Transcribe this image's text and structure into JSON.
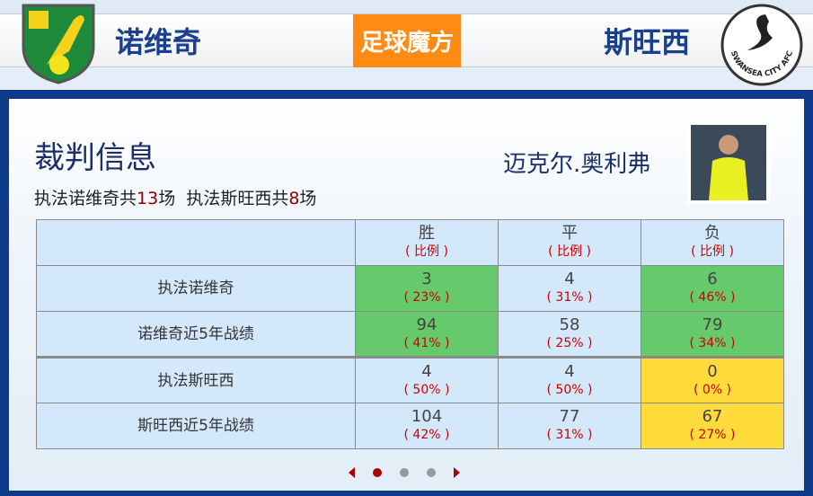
{
  "header": {
    "home_team": "诺维奇",
    "away_team": "斯旺西",
    "brand": "足球魔方",
    "home_crest": "norwich-crest",
    "away_crest": "swansea-crest",
    "away_crest_text": "SWANSEA CITY AFC"
  },
  "referee": {
    "title": "裁判信息",
    "name": "迈克尔.奥利弗",
    "stats_prefix1": "执法诺维奇共",
    "count1": "13",
    "unit1": "场",
    "stats_prefix2": "执法斯旺西共",
    "count2": "8",
    "unit2": "场"
  },
  "table": {
    "headers": [
      {
        "label": "胜",
        "sub": "( 比例 )"
      },
      {
        "label": "平",
        "sub": "( 比例 )"
      },
      {
        "label": "负",
        "sub": "( 比例 )"
      }
    ],
    "rows": [
      {
        "label": "执法诺维奇",
        "cells": [
          {
            "v": "3",
            "p": "( 23% )",
            "hl": "g"
          },
          {
            "v": "4",
            "p": "( 31% )",
            "hl": ""
          },
          {
            "v": "6",
            "p": "( 46% )",
            "hl": "g"
          }
        ]
      },
      {
        "label": "诺维奇近5年战绩",
        "cells": [
          {
            "v": "94",
            "p": "( 41% )",
            "hl": "g"
          },
          {
            "v": "58",
            "p": "( 25% )",
            "hl": ""
          },
          {
            "v": "79",
            "p": "( 34% )",
            "hl": "g"
          }
        ]
      },
      {
        "label": "执法斯旺西",
        "cells": [
          {
            "v": "4",
            "p": "( 50% )",
            "hl": ""
          },
          {
            "v": "4",
            "p": "( 50% )",
            "hl": ""
          },
          {
            "v": "0",
            "p": "( 0% )",
            "hl": "y"
          }
        ]
      },
      {
        "label": "斯旺西近5年战绩",
        "cells": [
          {
            "v": "104",
            "p": "( 42% )",
            "hl": ""
          },
          {
            "v": "77",
            "p": "( 31% )",
            "hl": ""
          },
          {
            "v": "67",
            "p": "( 27% )",
            "hl": "y"
          }
        ]
      }
    ]
  },
  "colors": {
    "green": "#66c96b",
    "yellow": "#ffdc3c",
    "title_blue": "#1b2f6b",
    "frame": "#0e3a8a"
  },
  "pager": {
    "pages": 3,
    "active": 1
  }
}
